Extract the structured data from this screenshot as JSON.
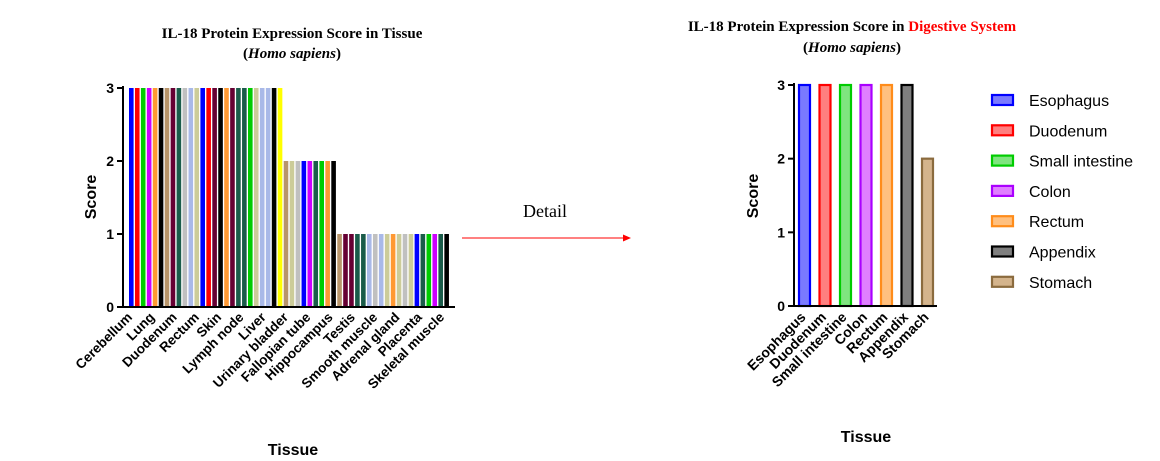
{
  "chart_data": [
    {
      "type": "bar",
      "title_line1": "IL-18 Protein Expression Score in Tissue",
      "title_line2_open": "(",
      "title_line2_italic": "Homo sapiens",
      "title_line2_close": ")",
      "xlabel": "Tissue",
      "ylabel": "Score",
      "ylim": [
        0,
        3
      ],
      "yticks": [
        0,
        1,
        2,
        3
      ],
      "tick_labels": [
        "Cerebellum",
        "Lung",
        "Duodenum",
        "Rectum",
        "Skin",
        "Lymph node",
        "Liver",
        "Urinary bladder",
        "Fallopian tube",
        "Hippocampus",
        "Testis",
        "Smooth muscle",
        "Adrenal gland",
        "Placenta",
        "Skeletal muscle"
      ],
      "bars": [
        {
          "value": 3,
          "color": "#0000FF"
        },
        {
          "value": 3,
          "color": "#FF0000"
        },
        {
          "value": 3,
          "color": "#00CC00"
        },
        {
          "value": 3,
          "color": "#CC00FF"
        },
        {
          "value": 3,
          "color": "#FF9933"
        },
        {
          "value": 3,
          "color": "#000000"
        },
        {
          "value": 3,
          "color": "#B8956A"
        },
        {
          "value": 3,
          "color": "#660033"
        },
        {
          "value": 3,
          "color": "#1A5C4A"
        },
        {
          "value": 3,
          "color": "#C0C0C0"
        },
        {
          "value": 3,
          "color": "#A9B9E8"
        },
        {
          "value": 3,
          "color": "#CCCC99"
        },
        {
          "value": 3,
          "color": "#0000FF"
        },
        {
          "value": 3,
          "color": "#FF0000"
        },
        {
          "value": 3,
          "color": "#660033"
        },
        {
          "value": 3,
          "color": "#000000"
        },
        {
          "value": 3,
          "color": "#FF9933"
        },
        {
          "value": 3,
          "color": "#660033"
        },
        {
          "value": 3,
          "color": "#1A5C4A"
        },
        {
          "value": 3,
          "color": "#1A5C4A"
        },
        {
          "value": 3,
          "color": "#00CC00"
        },
        {
          "value": 3,
          "color": "#CCCC99"
        },
        {
          "value": 3,
          "color": "#A9B9E8"
        },
        {
          "value": 3,
          "color": "#A9B9E8"
        },
        {
          "value": 3,
          "color": "#000000"
        },
        {
          "value": 3,
          "color": "#FFFF00"
        },
        {
          "value": 2,
          "color": "#B8956A"
        },
        {
          "value": 2,
          "color": "#CCCC99"
        },
        {
          "value": 2,
          "color": "#C0C0C0"
        },
        {
          "value": 2,
          "color": "#0000FF"
        },
        {
          "value": 2,
          "color": "#CC00FF"
        },
        {
          "value": 2,
          "color": "#1A5C4A"
        },
        {
          "value": 2,
          "color": "#00CC00"
        },
        {
          "value": 2,
          "color": "#FF9933"
        },
        {
          "value": 2,
          "color": "#000000"
        },
        {
          "value": 1,
          "color": "#B8956A"
        },
        {
          "value": 1,
          "color": "#660033"
        },
        {
          "value": 1,
          "color": "#660033"
        },
        {
          "value": 1,
          "color": "#1A5C4A"
        },
        {
          "value": 1,
          "color": "#1A5C4A"
        },
        {
          "value": 1,
          "color": "#A9B9E8"
        },
        {
          "value": 1,
          "color": "#C0C0C0"
        },
        {
          "value": 1,
          "color": "#A9B9E8"
        },
        {
          "value": 1,
          "color": "#CCCC99"
        },
        {
          "value": 1,
          "color": "#FF9933"
        },
        {
          "value": 1,
          "color": "#CCCC99"
        },
        {
          "value": 1,
          "color": "#C0C0C0"
        },
        {
          "value": 1,
          "color": "#CCCC99"
        },
        {
          "value": 1,
          "color": "#0000FF"
        },
        {
          "value": 1,
          "color": "#1A5C4A"
        },
        {
          "value": 1,
          "color": "#00CC00"
        },
        {
          "value": 1,
          "color": "#CC00FF"
        },
        {
          "value": 1,
          "color": "#1A5C4A"
        },
        {
          "value": 1,
          "color": "#000000"
        }
      ]
    },
    {
      "type": "bar",
      "title_prefix": "IL-18 Protein Expression Score in ",
      "title_highlight": "Digestive System",
      "title_highlight_color": "#FF0000",
      "title_line2_open": "(",
      "title_line2_italic": "Homo sapiens",
      "title_line2_close": ")",
      "xlabel": "Tissue",
      "ylabel": "Score",
      "ylim": [
        0,
        3
      ],
      "yticks": [
        0,
        1,
        2,
        3
      ],
      "categories": [
        "Esophagus",
        "Duodenum",
        "Small intestine",
        "Colon",
        "Rectum",
        "Appendix",
        "Stomach"
      ],
      "values": [
        3,
        3,
        3,
        3,
        3,
        3,
        2
      ],
      "fills": [
        "#7A7AFF",
        "#FF7F7F",
        "#7FE57F",
        "#E07FFF",
        "#FFC07F",
        "#7F7F7F",
        "#D4B48C"
      ],
      "strokes": [
        "#0000FF",
        "#FF0000",
        "#00CC00",
        "#AA00FF",
        "#FF8C1A",
        "#000000",
        "#8B6B3E"
      ],
      "legend": [
        "Esophagus",
        "Duodenum",
        "Small intestine",
        "Colon",
        "Rectum",
        "Appendix",
        "Stomach"
      ],
      "legend_position": "right"
    }
  ],
  "annotation": {
    "arrow_label": "Detail",
    "arrow_color": "#FF0000"
  }
}
